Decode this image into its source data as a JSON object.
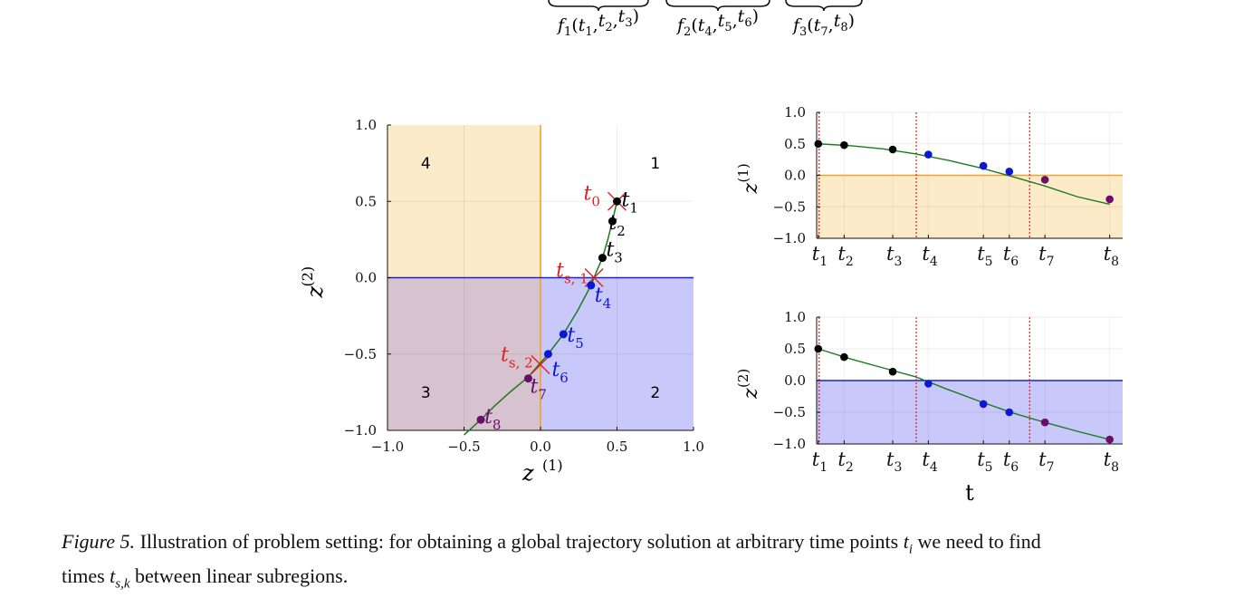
{
  "top_annotations": [
    {
      "fn": "f",
      "sub": "1",
      "args": [
        "t",
        "1",
        "t",
        "2",
        "t",
        "3"
      ]
    },
    {
      "fn": "f",
      "sub": "2",
      "args": [
        "t",
        "4",
        "t",
        "5",
        "t",
        "6"
      ]
    },
    {
      "fn": "f",
      "sub": "3",
      "args": [
        "t",
        "7",
        "t",
        "8"
      ]
    }
  ],
  "colors": {
    "orange_region": "#fcebc9",
    "orange_line": "#f0a030",
    "blue_region": "#c8c8fb",
    "blue_line": "#2020c8",
    "overlap_region": "#d6c3cf",
    "trajectory": "#1e7a1e",
    "switch_marker": "#e02020",
    "black_points": "#000000",
    "blue_points": "#0b16d6",
    "purple_points": "#6a0e6a",
    "vline": "#e02020"
  },
  "chart_data": [
    {
      "type": "scatter",
      "name": "phase_plane",
      "xlabel": "z(1)",
      "ylabel": "z(2)",
      "xlim": [
        -1.0,
        1.0
      ],
      "ylim": [
        -1.0,
        1.0
      ],
      "xticks": [
        "−1.0",
        "−0.5",
        "0.0",
        "0.5",
        "1.0"
      ],
      "yticks": [
        "1.0",
        "0.5",
        "0.0",
        "−0.5",
        "−1.0"
      ],
      "region_labels": [
        {
          "text": "4",
          "x": -0.75,
          "y": 0.75
        },
        {
          "text": "1",
          "x": 0.75,
          "y": 0.75
        },
        {
          "text": "3",
          "x": -0.75,
          "y": -0.75
        },
        {
          "text": "2",
          "x": 0.75,
          "y": -0.75
        }
      ],
      "trajectory": [
        [
          0.5,
          0.5
        ],
        [
          0.47,
          0.37
        ],
        [
          0.44,
          0.25
        ],
        [
          0.405,
          0.13
        ],
        [
          0.37,
          0.05
        ],
        [
          0.33,
          -0.05
        ],
        [
          0.24,
          -0.22
        ],
        [
          0.15,
          -0.37
        ],
        [
          0.05,
          -0.5
        ],
        [
          -0.02,
          -0.58
        ],
        [
          -0.08,
          -0.65
        ],
        [
          -0.2,
          -0.75
        ],
        [
          -0.3,
          -0.84
        ],
        [
          -0.39,
          -0.93
        ],
        [
          -0.5,
          -1.03
        ]
      ],
      "points": [
        {
          "label": "t",
          "sub": "1",
          "x": 0.5,
          "y": 0.5,
          "group": "black"
        },
        {
          "label": "t",
          "sub": "2",
          "x": 0.47,
          "y": 0.37,
          "group": "black"
        },
        {
          "label": "t",
          "sub": "3",
          "x": 0.405,
          "y": 0.13,
          "group": "black"
        },
        {
          "label": "t",
          "sub": "4",
          "x": 0.33,
          "y": -0.05,
          "group": "blue"
        },
        {
          "label": "t",
          "sub": "5",
          "x": 0.15,
          "y": -0.37,
          "group": "blue"
        },
        {
          "label": "t",
          "sub": "6",
          "x": 0.05,
          "y": -0.5,
          "group": "blue"
        },
        {
          "label": "t",
          "sub": "7",
          "x": -0.08,
          "y": -0.66,
          "group": "purple"
        },
        {
          "label": "t",
          "sub": "8",
          "x": -0.39,
          "y": -0.93,
          "group": "purple"
        }
      ],
      "switch_points": [
        {
          "label": "t",
          "sub": "0",
          "x": 0.5,
          "y": 0.5
        },
        {
          "label": "t",
          "sub": "s, 1",
          "x": 0.35,
          "y": 0.0
        },
        {
          "label": "t",
          "sub": "s, 2",
          "x": 0.0,
          "y": -0.57
        }
      ]
    },
    {
      "type": "line",
      "name": "z1_time",
      "ylabel": "z(1)",
      "ylim": [
        -1.0,
        1.0
      ],
      "yticks": [
        "1.0",
        "0.5",
        "0.0",
        "−0.5",
        "−1.0"
      ],
      "threshold": 0.0,
      "curve": [
        [
          0.0,
          0.5
        ],
        [
          1.0,
          0.47
        ],
        [
          2.0,
          0.42
        ],
        [
          3.0,
          0.34
        ],
        [
          4.0,
          0.24
        ],
        [
          5.0,
          0.12
        ],
        [
          6.0,
          -0.02
        ],
        [
          7.0,
          -0.17
        ],
        [
          8.0,
          -0.34
        ],
        [
          9.0,
          -0.46
        ]
      ],
      "points": [
        {
          "t": 0.0,
          "v": 0.5,
          "group": "black"
        },
        {
          "t": 0.8,
          "v": 0.48,
          "group": "black"
        },
        {
          "t": 2.3,
          "v": 0.41,
          "group": "black"
        },
        {
          "t": 3.4,
          "v": 0.33,
          "group": "blue"
        },
        {
          "t": 5.1,
          "v": 0.15,
          "group": "blue"
        },
        {
          "t": 5.9,
          "v": 0.06,
          "group": "blue"
        },
        {
          "t": 7.0,
          "v": -0.07,
          "group": "purple"
        },
        {
          "t": 9.0,
          "v": -0.38,
          "group": "purple"
        }
      ],
      "vlines": [
        0.0,
        3.0,
        6.5
      ]
    },
    {
      "type": "line",
      "name": "z2_time",
      "ylabel": "z(2)",
      "xlabel": "t",
      "ylim": [
        -1.0,
        1.0
      ],
      "yticks": [
        "1.0",
        "0.5",
        "0.0",
        "−0.5",
        "−1.0"
      ],
      "threshold": 0.0,
      "curve": [
        [
          0.0,
          0.5
        ],
        [
          1.0,
          0.34
        ],
        [
          2.0,
          0.2
        ],
        [
          3.0,
          0.06
        ],
        [
          4.0,
          -0.14
        ],
        [
          5.0,
          -0.33
        ],
        [
          6.0,
          -0.51
        ],
        [
          7.0,
          -0.66
        ],
        [
          8.0,
          -0.8
        ],
        [
          9.0,
          -0.93
        ]
      ],
      "points": [
        {
          "t": 0.0,
          "v": 0.5,
          "group": "black"
        },
        {
          "t": 0.8,
          "v": 0.37,
          "group": "black"
        },
        {
          "t": 2.3,
          "v": 0.14,
          "group": "black"
        },
        {
          "t": 3.4,
          "v": -0.05,
          "group": "blue"
        },
        {
          "t": 5.1,
          "v": -0.37,
          "group": "blue"
        },
        {
          "t": 5.9,
          "v": -0.5,
          "group": "blue"
        },
        {
          "t": 7.0,
          "v": -0.66,
          "group": "purple"
        },
        {
          "t": 9.0,
          "v": -0.93,
          "group": "purple"
        }
      ],
      "vlines": [
        0.0,
        3.0,
        6.5
      ],
      "xtick_labels": [
        {
          "label": "t",
          "sub": "1",
          "t": 0.0
        },
        {
          "label": "t",
          "sub": "2",
          "t": 0.8
        },
        {
          "label": "t",
          "sub": "3",
          "t": 2.3
        },
        {
          "label": "t",
          "sub": "4",
          "t": 3.4
        },
        {
          "label": "t",
          "sub": "5",
          "t": 5.1
        },
        {
          "label": "t",
          "sub": "6",
          "t": 5.9
        },
        {
          "label": "t",
          "sub": "7",
          "t": 7.0
        },
        {
          "label": "t",
          "sub": "8",
          "t": 9.0
        }
      ]
    }
  ],
  "caption": {
    "label": "Figure 5.",
    "line1_pre": "Illustration of problem setting: for obtaining a global trajectory solution at arbitrary time points",
    "line1_var": "t",
    "line1_sub": "i",
    "line1_post": "we need to find",
    "line2_pre": "times",
    "line2_var": "t",
    "line2_sub": "s,k",
    "line2_post": "between linear subregions."
  }
}
